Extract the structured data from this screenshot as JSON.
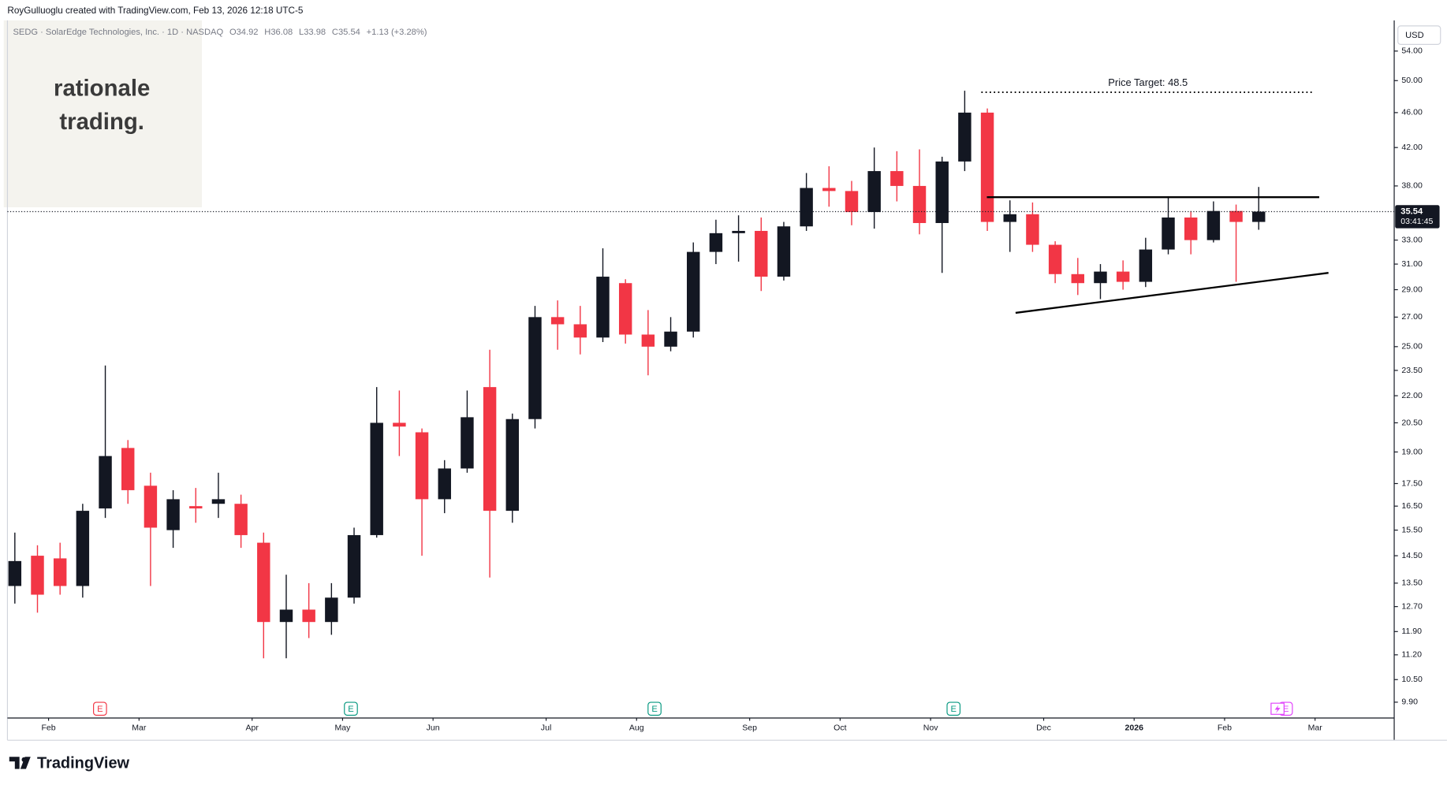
{
  "header": {
    "attribution": "RoyGulluoglu created with TradingView.com, Feb 13, 2026 12:18 UTC-5",
    "symbol": "SEDG · SolarEdge Technologies, Inc. · 1D · NASDAQ",
    "open": "O34.92",
    "high": "H36.08",
    "low": "L33.98",
    "close": "C35.54",
    "change": "+1.13 (+3.28%)"
  },
  "logo": {
    "line1": "rationale",
    "line2": "trading."
  },
  "currency": "USD",
  "brand": "TradingView",
  "event_labels": [
    "E",
    "E",
    "E",
    "E",
    "E"
  ],
  "chart_data": {
    "type": "candlestick",
    "log_scale": true,
    "grid": false,
    "up_color": "#131722",
    "down_color": "#f23645",
    "categories": [
      null,
      "Feb",
      null,
      null,
      null,
      "Mar",
      null,
      null,
      null,
      null,
      "Apr",
      null,
      null,
      null,
      "May",
      null,
      null,
      null,
      "Jun",
      null,
      null,
      null,
      null,
      "Jul",
      null,
      null,
      null,
      "Aug",
      null,
      null,
      null,
      null,
      "Sep",
      null,
      null,
      null,
      "Oct",
      null,
      null,
      null,
      "Nov",
      null,
      null,
      null,
      null,
      "Dec",
      null,
      null,
      null,
      "2026",
      null,
      null,
      null,
      "Feb",
      null,
      null,
      null,
      "Mar",
      null,
      null
    ],
    "open": [
      13.4,
      14.5,
      14.4,
      13.4,
      16.4,
      19.2,
      17.4,
      15.5,
      16.5,
      16.6,
      16.6,
      15.0,
      12.2,
      12.6,
      12.2,
      13.0,
      15.3,
      20.5,
      20.0,
      16.8,
      18.2,
      22.5,
      16.3,
      20.7,
      27.0,
      26.5,
      25.6,
      29.5,
      25.8,
      25.0,
      26.0,
      32.0,
      33.6,
      33.8,
      30.0,
      34.2,
      37.8,
      37.5,
      35.5,
      39.5,
      38.0,
      34.5,
      40.5,
      46.0,
      34.6,
      35.3,
      32.6,
      30.2,
      29.5,
      30.4,
      29.6,
      32.2,
      35.0,
      33.0,
      35.6,
      34.6,
      null,
      null,
      null,
      null
    ],
    "high": [
      15.4,
      14.9,
      15.0,
      16.6,
      23.8,
      19.6,
      18.0,
      17.2,
      17.3,
      18.0,
      17.0,
      15.4,
      13.8,
      13.5,
      13.5,
      15.6,
      22.5,
      22.3,
      20.2,
      18.6,
      22.3,
      24.8,
      21.0,
      27.8,
      28.2,
      27.8,
      32.3,
      29.8,
      27.5,
      27.0,
      32.8,
      34.8,
      35.2,
      35.0,
      34.6,
      39.3,
      40.0,
      38.5,
      42.0,
      41.6,
      41.8,
      41.0,
      48.7,
      46.5,
      36.6,
      36.4,
      32.9,
      31.5,
      31.0,
      31.3,
      33.2,
      37.0,
      35.6,
      36.5,
      36.2,
      37.9,
      null,
      null,
      null,
      null
    ],
    "low": [
      12.8,
      12.5,
      13.1,
      13.0,
      16.0,
      16.6,
      13.4,
      14.8,
      15.8,
      16.0,
      14.8,
      11.1,
      11.1,
      11.7,
      11.8,
      12.8,
      15.2,
      18.8,
      14.5,
      16.2,
      18.0,
      13.7,
      15.8,
      20.2,
      24.8,
      24.5,
      25.3,
      25.2,
      23.2,
      24.7,
      25.6,
      31.0,
      31.2,
      28.9,
      29.7,
      33.8,
      36.0,
      34.3,
      34.0,
      36.5,
      33.5,
      30.3,
      39.5,
      33.8,
      32.0,
      32.0,
      29.5,
      28.6,
      28.3,
      29.0,
      29.2,
      31.8,
      31.8,
      32.8,
      29.6,
      33.9,
      null,
      null,
      null,
      null
    ],
    "close": [
      14.3,
      13.1,
      13.4,
      16.3,
      18.8,
      17.2,
      15.6,
      16.8,
      16.4,
      16.8,
      15.3,
      12.2,
      12.6,
      12.2,
      13.0,
      15.3,
      20.5,
      20.3,
      16.8,
      18.2,
      20.8,
      16.3,
      20.7,
      27.0,
      26.5,
      25.6,
      30.0,
      25.8,
      25.0,
      26.0,
      32.0,
      33.6,
      33.8,
      30.0,
      34.2,
      37.8,
      37.5,
      35.5,
      39.5,
      38.0,
      34.5,
      40.5,
      46.0,
      34.6,
      35.3,
      32.6,
      30.2,
      29.5,
      30.4,
      29.6,
      32.2,
      35.0,
      33.0,
      35.6,
      34.6,
      35.54,
      null,
      null,
      null,
      null
    ],
    "ylim": [
      9.5,
      58.5
    ],
    "yticks": [
      {
        "value": 54,
        "label": "54.00"
      },
      {
        "value": 50,
        "label": "50.00"
      },
      {
        "value": 46,
        "label": "46.00"
      },
      {
        "value": 42,
        "label": "42.00"
      },
      {
        "value": 38,
        "label": "38.00"
      },
      {
        "value": 33,
        "label": "33.00"
      },
      {
        "value": 31,
        "label": "31.00"
      },
      {
        "value": 29,
        "label": "29.00"
      },
      {
        "value": 27,
        "label": "27.00"
      },
      {
        "value": 25,
        "label": "25.00"
      },
      {
        "value": 23.5,
        "label": "23.50"
      },
      {
        "value": 22,
        "label": "22.00"
      },
      {
        "value": 20.5,
        "label": "20.50"
      },
      {
        "value": 19,
        "label": "19.00"
      },
      {
        "value": 17.5,
        "label": "17.50"
      },
      {
        "value": 16.5,
        "label": "16.50"
      },
      {
        "value": 15.5,
        "label": "15.50"
      },
      {
        "value": 14.5,
        "label": "14.50"
      },
      {
        "value": 13.5,
        "label": "13.50"
      },
      {
        "value": 12.7,
        "label": "12.70"
      },
      {
        "value": 11.9,
        "label": "11.90"
      },
      {
        "value": 11.2,
        "label": "11.20"
      },
      {
        "value": 10.5,
        "label": "10.50"
      },
      {
        "value": 9.9,
        "label": "9.90"
      }
    ],
    "last_price": {
      "value": 35.54,
      "label": "35.54"
    },
    "countdown": "03:41:45",
    "price_target": {
      "value": 48.5,
      "label": "Price Target: 48.5"
    },
    "resistance": 36.9,
    "support_line": [
      27.3,
      30.3
    ]
  }
}
